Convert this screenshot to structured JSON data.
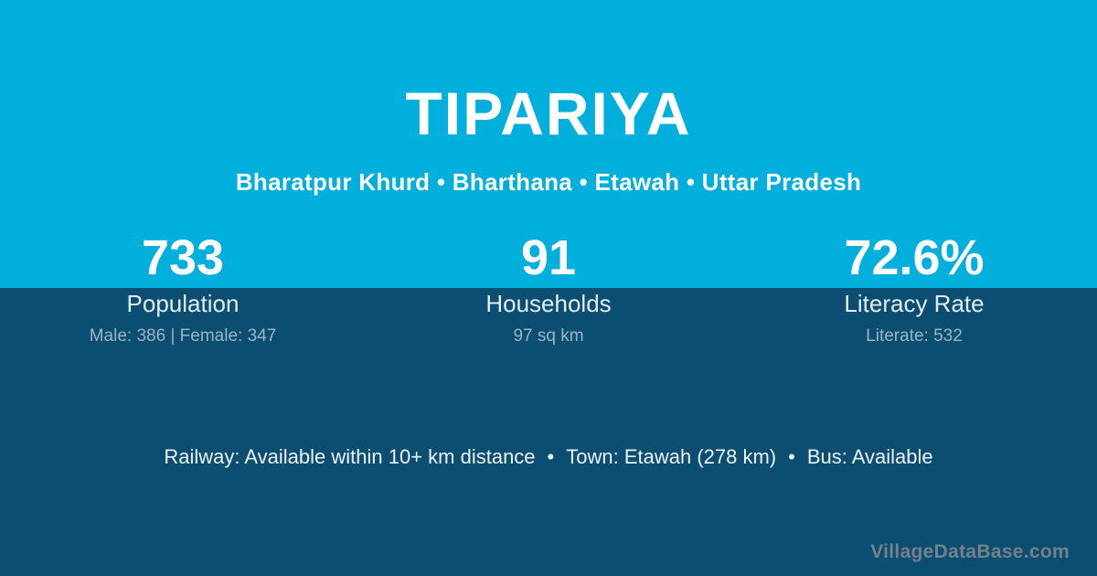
{
  "colors": {
    "top_background": "#00AFDC",
    "bottom_background": "#0B4E72",
    "text_primary": "#FFFFFF",
    "stat_label": "#E3EDF4",
    "stat_detail": "#9DB4C4",
    "watermark": "#73828A"
  },
  "header": {
    "title": "TIPARIYA",
    "subtitle": "Bharatpur Khurd • Bharthana • Etawah • Uttar Pradesh"
  },
  "stats": [
    {
      "value": "733",
      "label": "Population",
      "detail": "Male: 386 | Female: 347"
    },
    {
      "value": "91",
      "label": "Households",
      "detail": "97 sq km"
    },
    {
      "value": "72.6%",
      "label": "Literacy Rate",
      "detail": "Literate: 532"
    }
  ],
  "footer": {
    "separator": "•",
    "items": [
      "Railway: Available within 10+ km distance",
      "Town: Etawah (278 km)",
      "Bus: Available"
    ]
  },
  "watermark": "VillageDataBase.com"
}
